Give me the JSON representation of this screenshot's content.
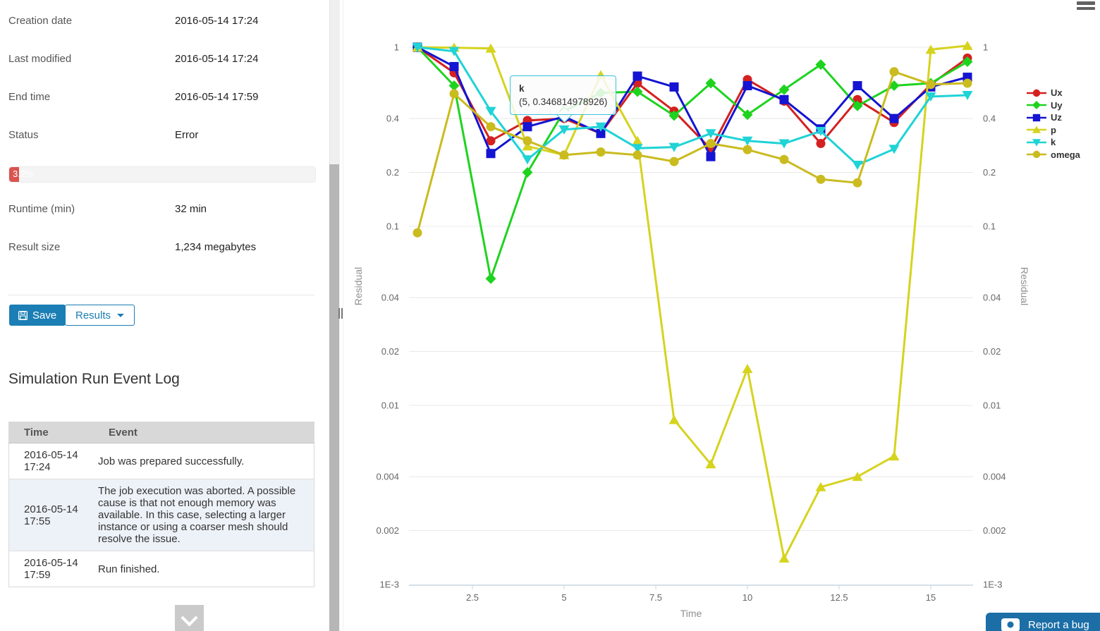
{
  "left_panel": {
    "fields": [
      {
        "label": "Creation date",
        "value": "2016-05-14 17:24"
      },
      {
        "label": "Last modified",
        "value": "2016-05-14 17:24"
      },
      {
        "label": "End time",
        "value": "2016-05-14 17:59"
      },
      {
        "label": "Status",
        "value": "Error"
      },
      {
        "label": "Runtime (min)",
        "value": "32 min"
      },
      {
        "label": "Result size",
        "value": "1,234 megabytes"
      }
    ],
    "progress": {
      "label": "3.2%",
      "percent": 3.2,
      "fill_color": "#d9534f"
    },
    "save_label": "Save",
    "results_label": "Results",
    "event_log": {
      "title": "Simulation Run Event Log",
      "columns": {
        "time": "Time",
        "event": "Event"
      },
      "rows": [
        {
          "time": "2016-05-14 17:24",
          "event": "Job was prepared successfully.",
          "status": "success"
        },
        {
          "time": "2016-05-14 17:55",
          "event": "The job execution was aborted. A possible cause is that not enough memory was available. In this case, selecting a larger instance or using a coarser mesh should resolve the issue.",
          "status": "error"
        },
        {
          "time": "2016-05-14 17:59",
          "event": "Run finished.",
          "status": "success"
        }
      ]
    }
  },
  "icons": {
    "save": "floppy-disk",
    "results_caret": "caret-down",
    "scroll_more": "chevron-down",
    "chart_menu": "hamburger",
    "report_bug": "camera"
  },
  "status_colors": {
    "success": "#1f9b1f",
    "error": "#ef1d1d"
  },
  "accent_color": "#1b7eb4",
  "chart_data": {
    "type": "line",
    "title": "",
    "xlabel": "Time",
    "ylabel": "Residual",
    "ylabel_right": "Residual",
    "y_scale": "log",
    "grid": "horizontal",
    "legend_position": "right",
    "xlim": [
      0.77,
      16.15
    ],
    "ylim": [
      0.001,
      1.28
    ],
    "x_ticks": [
      2.5,
      5,
      7.5,
      10,
      12.5,
      15
    ],
    "x_tick_labels": [
      "2.5",
      "5",
      "7.5",
      "10",
      "12.5",
      "15"
    ],
    "y_ticks": [
      1,
      0.4,
      0.2,
      0.1,
      0.04,
      0.02,
      0.01,
      0.004,
      0.002,
      0.001
    ],
    "y_tick_labels": [
      "1",
      "0.4",
      "0.2",
      "0.1",
      "0.04",
      "0.02",
      "0.01",
      "0.004",
      "0.002",
      "1E-3"
    ],
    "x": [
      1,
      2,
      3,
      4,
      5,
      6,
      7,
      8,
      9,
      10,
      11,
      12,
      13,
      14,
      15,
      16
    ],
    "series": [
      {
        "name": "Ux",
        "color": "#d42020",
        "marker": "circle",
        "values": [
          1.0,
          0.72,
          0.3,
          0.39,
          0.4,
          0.33,
          0.63,
          0.44,
          0.27,
          0.66,
          0.5,
          0.29,
          0.51,
          0.38,
          0.62,
          0.87
        ]
      },
      {
        "name": "Uy",
        "color": "#1ed31e",
        "marker": "diamond",
        "values": [
          1.0,
          0.61,
          0.051,
          0.2,
          0.44,
          0.556,
          0.565,
          0.415,
          0.63,
          0.42,
          0.58,
          0.8,
          0.47,
          0.61,
          0.63,
          0.83
        ]
      },
      {
        "name": "Uz",
        "color": "#1414d2",
        "marker": "square",
        "values": [
          1.0,
          0.78,
          0.255,
          0.36,
          0.41,
          0.33,
          0.69,
          0.6,
          0.245,
          0.61,
          0.51,
          0.35,
          0.61,
          0.4,
          0.6,
          0.68
        ]
      },
      {
        "name": "p",
        "color": "#d6d31f",
        "marker": "triangle",
        "values": [
          1.0,
          0.995,
          0.985,
          0.28,
          0.25,
          0.7,
          0.3,
          0.0083,
          0.0047,
          0.016,
          0.0014,
          0.0035,
          0.004,
          0.0052,
          0.97,
          1.02
        ]
      },
      {
        "name": "k",
        "color": "#1fd3d6",
        "marker": "triangle-down",
        "values": [
          1.0,
          0.95,
          0.44,
          0.236,
          0.346814978926,
          0.36,
          0.273,
          0.277,
          0.33,
          0.3,
          0.29,
          0.34,
          0.22,
          0.27,
          0.53,
          0.54
        ]
      },
      {
        "name": "omega",
        "color": "#cabb1f",
        "marker": "circle",
        "values": [
          0.092,
          0.55,
          0.36,
          0.3,
          0.25,
          0.26,
          0.25,
          0.23,
          0.29,
          0.268,
          0.236,
          0.183,
          0.175,
          0.73,
          0.62,
          0.63
        ]
      }
    ],
    "tooltip": {
      "series": "k",
      "value_text": "(5, 0.346814978926)"
    }
  },
  "report_bug_label": "Report a bug"
}
